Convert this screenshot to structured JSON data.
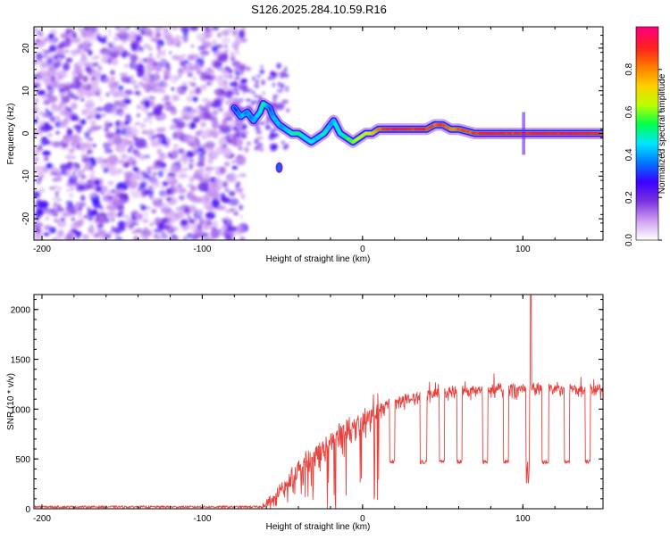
{
  "title": "S126.2025.284.10.59.R16",
  "chart_data": [
    {
      "type": "heatmap",
      "panel": "spectrogram",
      "xlabel": "Height of straight line (km)",
      "ylabel": "Frequency (Hz)",
      "xlim": [
        -205,
        150
      ],
      "ylim": [
        -25,
        25
      ],
      "xticks": [
        -200,
        -100,
        0,
        100
      ],
      "yticks": [
        -20,
        -10,
        0,
        10,
        20
      ],
      "colorbar": {
        "label": "Normalized spectral amplitude",
        "range": [
          0,
          1
        ],
        "ticks": [
          0.0,
          0.2,
          0.4,
          0.6,
          0.8
        ],
        "colors": [
          "#ffffff",
          "#ce9ef2",
          "#7b32e0",
          "#3b00ff",
          "#0077ff",
          "#00e5ff",
          "#00ff4c",
          "#b9ff00",
          "#ffd000",
          "#ff7a00",
          "#ff1f1f",
          "#ff007a"
        ]
      },
      "noise_region_x": [
        -205,
        -78
      ],
      "line_trace": {
        "x": [
          -80,
          -76,
          -72,
          -68,
          -64,
          -62,
          -58,
          -56,
          -52,
          -48,
          -44,
          -40,
          -36,
          -32,
          -28,
          -24,
          -20,
          -18,
          -14,
          -10,
          -6,
          -2,
          2,
          6,
          10,
          14,
          20,
          30,
          40,
          45,
          50,
          55,
          60,
          70,
          80,
          90,
          100,
          110,
          120,
          130,
          140,
          150
        ],
        "y": [
          6,
          4,
          5,
          3,
          5,
          7,
          6,
          4,
          2,
          1,
          0,
          0,
          -1,
          -2,
          -1,
          0,
          2,
          3,
          0,
          -1,
          -2,
          -1,
          0,
          0,
          1,
          1,
          1,
          1,
          1,
          2,
          2,
          1,
          1,
          0,
          0,
          0,
          0,
          0,
          0,
          0,
          0,
          0
        ],
        "amplitude": [
          0.3,
          0.4,
          0.35,
          0.4,
          0.45,
          0.5,
          0.35,
          0.4,
          0.4,
          0.45,
          0.5,
          0.5,
          0.45,
          0.45,
          0.45,
          0.5,
          0.4,
          0.45,
          0.5,
          0.55,
          0.6,
          0.65,
          0.7,
          0.75,
          0.85,
          0.9,
          0.95,
          0.92,
          0.9,
          0.85,
          0.9,
          0.8,
          0.85,
          0.9,
          0.95,
          0.92,
          0.9,
          0.95,
          0.9,
          0.95,
          0.92,
          0.9
        ]
      },
      "isolated_blob": {
        "x": -52,
        "y": -8
      }
    },
    {
      "type": "line",
      "panel": "snr",
      "xlabel": "Height of straight line (km)",
      "ylabel": "SNR (10 * v/v)",
      "xlim": [
        -205,
        150
      ],
      "ylim": [
        0,
        2150
      ],
      "xticks": [
        -200,
        -100,
        0,
        100
      ],
      "yticks": [
        0,
        500,
        1000,
        1500,
        2000
      ],
      "color": "#e8413c",
      "noise_floor_until": -62,
      "envelope": {
        "x": [
          -62,
          -55,
          -50,
          -45,
          -40,
          -35,
          -30,
          -25,
          -20,
          -15,
          -10,
          -5,
          0,
          5,
          10,
          15,
          20,
          30,
          40,
          50,
          60,
          70,
          80,
          90,
          100,
          110,
          120,
          130,
          140,
          150
        ],
        "y": [
          50,
          150,
          280,
          380,
          480,
          580,
          620,
          700,
          780,
          840,
          900,
          930,
          980,
          1020,
          1050,
          1080,
          1110,
          1150,
          1180,
          1210,
          1220,
          1230,
          1240,
          1250,
          1250,
          1250,
          1245,
          1240,
          1240,
          1250
        ]
      },
      "dropouts": [
        [
          17,
          20
        ],
        [
          36,
          40
        ],
        [
          48,
          51
        ],
        [
          59,
          62
        ],
        [
          75,
          78
        ],
        [
          88,
          91
        ],
        [
          102,
          104
        ],
        [
          112,
          116
        ],
        [
          126,
          129
        ],
        [
          139,
          142
        ]
      ],
      "dropout_level": 470,
      "spike": {
        "x": 105,
        "y": 2140
      }
    }
  ]
}
